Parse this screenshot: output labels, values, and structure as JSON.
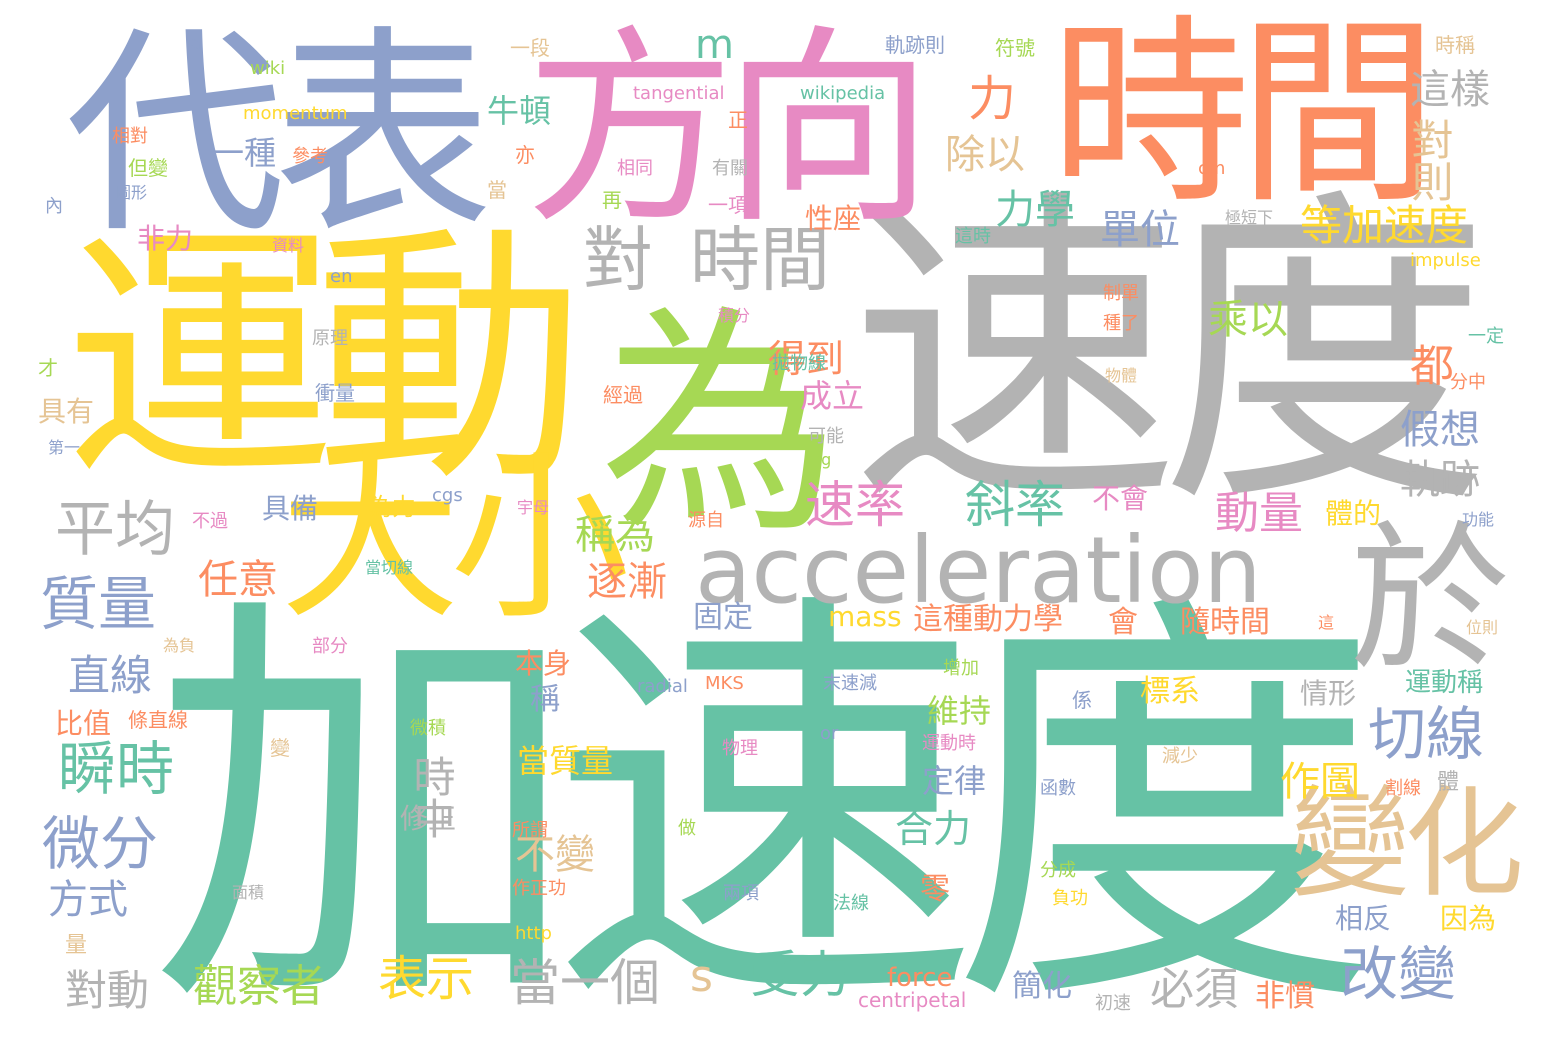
{
  "palette": {
    "green": "#66c2a5",
    "gray": "#b3b3b3",
    "yellow": "#ffd92f",
    "blue": "#8da0cb",
    "orange": "#fc8d62",
    "pink": "#e78ac3",
    "lime": "#a6d854",
    "tan": "#e5c494"
  },
  "words": [
    {
      "text": "加速度",
      "color": "green"
    },
    {
      "text": "速度",
      "color": "gray"
    },
    {
      "text": "運動",
      "color": "yellow"
    },
    {
      "text": "為",
      "color": "lime"
    },
    {
      "text": "代表",
      "color": "blue"
    },
    {
      "text": "方向",
      "color": "pink"
    },
    {
      "text": "時間",
      "color": "orange"
    },
    {
      "text": "大小",
      "color": "yellow"
    },
    {
      "text": "acceleration",
      "color": "gray"
    },
    {
      "text": "於",
      "color": "gray"
    },
    {
      "text": "變化",
      "color": "tan"
    },
    {
      "text": "對",
      "color": "gray"
    },
    {
      "text": "時間",
      "color": "gray"
    },
    {
      "text": "平均",
      "color": "gray"
    },
    {
      "text": "質量",
      "color": "blue"
    },
    {
      "text": "瞬時",
      "color": "green"
    },
    {
      "text": "微分",
      "color": "blue"
    },
    {
      "text": "切線",
      "color": "blue"
    },
    {
      "text": "改變",
      "color": "blue"
    },
    {
      "text": "速率",
      "color": "pink"
    },
    {
      "text": "斜率",
      "color": "green"
    },
    {
      "text": "動量",
      "color": "pink"
    },
    {
      "text": "受力",
      "color": "green"
    },
    {
      "text": "當一個",
      "color": "gray"
    },
    {
      "text": "表示",
      "color": "yellow"
    },
    {
      "text": "觀察者",
      "color": "lime"
    },
    {
      "text": "必須",
      "color": "gray"
    },
    {
      "text": "對動",
      "color": "gray"
    },
    {
      "text": "等加速度",
      "color": "yellow"
    },
    {
      "text": "單位",
      "color": "blue"
    },
    {
      "text": "力學",
      "color": "green"
    },
    {
      "text": "乘以",
      "color": "lime"
    },
    {
      "text": "都",
      "color": "orange"
    },
    {
      "text": "假想",
      "color": "blue"
    },
    {
      "text": "軌跡",
      "color": "gray"
    },
    {
      "text": "力",
      "color": "orange"
    },
    {
      "text": "除以",
      "color": "tan"
    },
    {
      "text": "這樣",
      "color": "gray"
    },
    {
      "text": "對則",
      "color": "tan"
    },
    {
      "text": "得到",
      "color": "orange"
    },
    {
      "text": "成立",
      "color": "pink"
    },
    {
      "text": "稱為",
      "color": "lime"
    },
    {
      "text": "逐漸",
      "color": "orange"
    },
    {
      "text": "任意",
      "color": "orange"
    },
    {
      "text": "直線",
      "color": "blue"
    },
    {
      "text": "方式",
      "color": "blue"
    },
    {
      "text": "作圖",
      "color": "yellow"
    },
    {
      "text": "不變",
      "color": "tan"
    },
    {
      "text": "合力",
      "color": "green"
    },
    {
      "text": "牛頓",
      "color": "green"
    },
    {
      "text": "一種",
      "color": "blue"
    },
    {
      "text": "m",
      "color": "green"
    },
    {
      "text": "s",
      "color": "tan"
    },
    {
      "text": "時中",
      "color": "gray"
    },
    {
      "text": "隨時間",
      "color": "orange"
    },
    {
      "text": "這種動力學",
      "color": "orange"
    },
    {
      "text": "mass",
      "color": "yellow"
    },
    {
      "text": "固定",
      "color": "blue"
    },
    {
      "text": "會",
      "color": "orange"
    },
    {
      "text": "標系",
      "color": "yellow"
    },
    {
      "text": "維持",
      "color": "lime"
    },
    {
      "text": "定律",
      "color": "blue"
    },
    {
      "text": "當質量",
      "color": "yellow"
    },
    {
      "text": "本身",
      "color": "orange"
    },
    {
      "text": "修正",
      "color": "gray"
    },
    {
      "text": "性座",
      "color": "orange"
    },
    {
      "text": "具備",
      "color": "blue"
    },
    {
      "text": "為力",
      "color": "yellow"
    },
    {
      "text": "比值",
      "color": "orange"
    },
    {
      "text": "非力",
      "color": "pink"
    },
    {
      "text": "force",
      "color": "orange"
    },
    {
      "text": "簡化",
      "color": "blue"
    },
    {
      "text": "非慣",
      "color": "orange"
    },
    {
      "text": "相反",
      "color": "blue"
    },
    {
      "text": "因為",
      "color": "yellow"
    },
    {
      "text": "情形",
      "color": "gray"
    },
    {
      "text": "運動稱",
      "color": "green"
    },
    {
      "text": "零",
      "color": "orange"
    },
    {
      "text": "體的",
      "color": "yellow"
    },
    {
      "text": "不會",
      "color": "pink"
    },
    {
      "text": "具有",
      "color": "tan"
    },
    {
      "text": "稱",
      "color": "blue"
    },
    {
      "text": "centripetal",
      "color": "pink"
    },
    {
      "text": "tangential",
      "color": "pink"
    },
    {
      "text": "momentum",
      "color": "yellow"
    },
    {
      "text": "wikipedia",
      "color": "green"
    },
    {
      "text": "impulse",
      "color": "yellow"
    },
    {
      "text": "wiki",
      "color": "lime"
    },
    {
      "text": "a",
      "color": "blue"
    },
    {
      "text": "en",
      "color": "blue"
    },
    {
      "text": "cgs",
      "color": "blue"
    },
    {
      "text": "org",
      "color": "lime"
    },
    {
      "text": "MKS",
      "color": "orange"
    },
    {
      "text": "radial",
      "color": "blue"
    },
    {
      "text": "or",
      "color": "blue"
    },
    {
      "text": "http",
      "color": "yellow"
    },
    {
      "text": "cm",
      "color": "orange"
    },
    {
      "text": "軌跡則",
      "color": "blue"
    },
    {
      "text": "符號",
      "color": "lime"
    },
    {
      "text": "時稱",
      "color": "tan"
    },
    {
      "text": "一段",
      "color": "tan"
    },
    {
      "text": "相對",
      "color": "orange"
    },
    {
      "text": "參考",
      "color": "orange"
    },
    {
      "text": "但變",
      "color": "lime"
    },
    {
      "text": "圖形",
      "color": "blue"
    },
    {
      "text": "內",
      "color": "blue"
    },
    {
      "text": "正",
      "color": "orange"
    },
    {
      "text": "亦",
      "color": "orange"
    },
    {
      "text": "當",
      "color": "tan"
    },
    {
      "text": "相同",
      "color": "pink"
    },
    {
      "text": "有關",
      "color": "gray"
    },
    {
      "text": "再",
      "color": "lime"
    },
    {
      "text": "一項",
      "color": "pink"
    },
    {
      "text": "資料",
      "color": "pink"
    },
    {
      "text": "原理",
      "color": "gray"
    },
    {
      "text": "衝量",
      "color": "blue"
    },
    {
      "text": "才",
      "color": "lime"
    },
    {
      "text": "第一",
      "color": "blue"
    },
    {
      "text": "積分",
      "color": "pink"
    },
    {
      "text": "拋物線",
      "color": "green"
    },
    {
      "text": "經過",
      "color": "orange"
    },
    {
      "text": "可能",
      "color": "gray"
    },
    {
      "text": "這時",
      "color": "green"
    },
    {
      "text": "極短下",
      "color": "gray"
    },
    {
      "text": "制單",
      "color": "orange"
    },
    {
      "text": "種了",
      "color": "orange"
    },
    {
      "text": "物體",
      "color": "tan"
    },
    {
      "text": "一定",
      "color": "green"
    },
    {
      "text": "分中",
      "color": "orange"
    },
    {
      "text": "功能",
      "color": "blue"
    },
    {
      "text": "位則",
      "color": "tan"
    },
    {
      "text": "這",
      "color": "orange"
    },
    {
      "text": "宇母",
      "color": "pink"
    },
    {
      "text": "源自",
      "color": "orange"
    },
    {
      "text": "不過",
      "color": "pink"
    },
    {
      "text": "當切線",
      "color": "green"
    },
    {
      "text": "為負",
      "color": "tan"
    },
    {
      "text": "部分",
      "color": "pink"
    },
    {
      "text": "條直線",
      "color": "orange"
    },
    {
      "text": "增加",
      "color": "lime"
    },
    {
      "text": "末速減",
      "color": "blue"
    },
    {
      "text": "係",
      "color": "blue"
    },
    {
      "text": "微積",
      "color": "lime"
    },
    {
      "text": "物理",
      "color": "pink"
    },
    {
      "text": "運動時",
      "color": "pink"
    },
    {
      "text": "函數",
      "color": "blue"
    },
    {
      "text": "減少",
      "color": "tan"
    },
    {
      "text": "割線",
      "color": "orange"
    },
    {
      "text": "體",
      "color": "gray"
    },
    {
      "text": "變",
      "color": "tan"
    },
    {
      "text": "所謂",
      "color": "orange"
    },
    {
      "text": "做",
      "color": "lime"
    },
    {
      "text": "作正功",
      "color": "orange"
    },
    {
      "text": "分成",
      "color": "lime"
    },
    {
      "text": "負功",
      "color": "yellow"
    },
    {
      "text": "兩項",
      "color": "blue"
    },
    {
      "text": "法線",
      "color": "green"
    },
    {
      "text": "面積",
      "color": "gray"
    },
    {
      "text": "量",
      "color": "tan"
    },
    {
      "text": "初速",
      "color": "gray"
    }
  ]
}
